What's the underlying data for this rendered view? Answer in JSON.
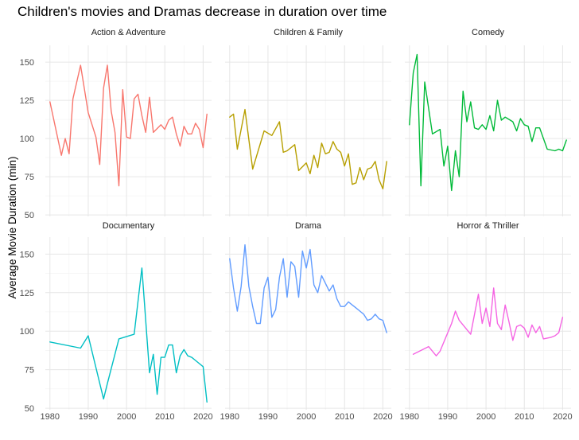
{
  "chart_data": {
    "type": "line",
    "title": "Children's movies and Dramas decrease in duration over time",
    "xlabel": "",
    "ylabel": "Average Movie Duration (min)",
    "xlim": [
      1978.8,
      2022.2
    ],
    "ylim": [
      49,
      161
    ],
    "xticks": [
      1980,
      1990,
      2000,
      2010,
      2020
    ],
    "yticks": [
      50,
      75,
      100,
      125,
      150
    ],
    "grid": true,
    "legend": "none",
    "facets": [
      {
        "name": "Action & Adventure",
        "color": "#F8766D",
        "points": [
          [
            1980,
            124
          ],
          [
            1983,
            89
          ],
          [
            1984,
            100
          ],
          [
            1985,
            90
          ],
          [
            1986,
            126
          ],
          [
            1988,
            148
          ],
          [
            1990,
            117
          ],
          [
            1992,
            101
          ],
          [
            1993,
            83
          ],
          [
            1994,
            133
          ],
          [
            1995,
            148
          ],
          [
            1996,
            118
          ],
          [
            1997,
            104
          ],
          [
            1998,
            69
          ],
          [
            1999,
            132
          ],
          [
            2000,
            101
          ],
          [
            2001,
            100
          ],
          [
            2002,
            126
          ],
          [
            2003,
            129
          ],
          [
            2004,
            115
          ],
          [
            2005,
            104
          ],
          [
            2006,
            127
          ],
          [
            2007,
            104
          ],
          [
            2009,
            109
          ],
          [
            2010,
            106
          ],
          [
            2011,
            112
          ],
          [
            2012,
            114
          ],
          [
            2013,
            103
          ],
          [
            2014,
            95
          ],
          [
            2015,
            108
          ],
          [
            2016,
            103
          ],
          [
            2017,
            103
          ],
          [
            2018,
            110
          ],
          [
            2019,
            106
          ],
          [
            2020,
            94
          ],
          [
            2021,
            116
          ]
        ]
      },
      {
        "name": "Children & Family",
        "color": "#B79F00",
        "points": [
          [
            1980,
            114
          ],
          [
            1981,
            116
          ],
          [
            1982,
            93
          ],
          [
            1984,
            119
          ],
          [
            1986,
            80
          ],
          [
            1989,
            105
          ],
          [
            1991,
            102
          ],
          [
            1993,
            111
          ],
          [
            1994,
            91
          ],
          [
            1995,
            92
          ],
          [
            1997,
            96
          ],
          [
            1998,
            79
          ],
          [
            2000,
            84
          ],
          [
            2001,
            77
          ],
          [
            2002,
            89
          ],
          [
            2003,
            81
          ],
          [
            2004,
            97
          ],
          [
            2005,
            90
          ],
          [
            2006,
            91
          ],
          [
            2007,
            98
          ],
          [
            2008,
            93
          ],
          [
            2009,
            91
          ],
          [
            2010,
            82
          ],
          [
            2011,
            90
          ],
          [
            2012,
            70
          ],
          [
            2013,
            71
          ],
          [
            2014,
            81
          ],
          [
            2015,
            73
          ],
          [
            2016,
            80
          ],
          [
            2017,
            81
          ],
          [
            2018,
            85
          ],
          [
            2019,
            73
          ],
          [
            2020,
            67
          ],
          [
            2021,
            85
          ]
        ]
      },
      {
        "name": "Comedy",
        "color": "#00BA38",
        "points": [
          [
            1980,
            109
          ],
          [
            1981,
            143
          ],
          [
            1982,
            155
          ],
          [
            1983,
            69
          ],
          [
            1984,
            137
          ],
          [
            1986,
            103
          ],
          [
            1988,
            106
          ],
          [
            1989,
            82
          ],
          [
            1990,
            95
          ],
          [
            1991,
            66
          ],
          [
            1992,
            92
          ],
          [
            1993,
            75
          ],
          [
            1994,
            131
          ],
          [
            1995,
            111
          ],
          [
            1996,
            124
          ],
          [
            1997,
            107
          ],
          [
            1998,
            106
          ],
          [
            1999,
            109
          ],
          [
            2000,
            106
          ],
          [
            2001,
            115
          ],
          [
            2002,
            105
          ],
          [
            2003,
            125
          ],
          [
            2004,
            112
          ],
          [
            2005,
            114
          ],
          [
            2007,
            111
          ],
          [
            2008,
            105
          ],
          [
            2009,
            113
          ],
          [
            2010,
            109
          ],
          [
            2011,
            108
          ],
          [
            2012,
            98
          ],
          [
            2013,
            107
          ],
          [
            2014,
            107
          ],
          [
            2016,
            93
          ],
          [
            2018,
            92
          ],
          [
            2019,
            93
          ],
          [
            2020,
            92
          ],
          [
            2021,
            99
          ]
        ]
      },
      {
        "name": "Documentary",
        "color": "#00BFC4",
        "points": [
          [
            1980,
            93
          ],
          [
            1988,
            89
          ],
          [
            1990,
            97
          ],
          [
            1994,
            56
          ],
          [
            1995,
            66
          ],
          [
            1998,
            95
          ],
          [
            2002,
            98
          ],
          [
            2004,
            141
          ],
          [
            2006,
            73
          ],
          [
            2007,
            85
          ],
          [
            2008,
            59
          ],
          [
            2009,
            83
          ],
          [
            2010,
            83
          ],
          [
            2011,
            91
          ],
          [
            2012,
            91
          ],
          [
            2013,
            73
          ],
          [
            2014,
            84
          ],
          [
            2015,
            88
          ],
          [
            2016,
            84
          ],
          [
            2017,
            83
          ],
          [
            2018,
            81
          ],
          [
            2020,
            77
          ],
          [
            2021,
            54
          ]
        ]
      },
      {
        "name": "Drama",
        "color": "#619CFF",
        "points": [
          [
            1980,
            147
          ],
          [
            1981,
            128
          ],
          [
            1982,
            113
          ],
          [
            1983,
            129
          ],
          [
            1984,
            156
          ],
          [
            1985,
            129
          ],
          [
            1986,
            116
          ],
          [
            1987,
            105
          ],
          [
            1988,
            105
          ],
          [
            1989,
            128
          ],
          [
            1990,
            135
          ],
          [
            1991,
            109
          ],
          [
            1992,
            114
          ],
          [
            1993,
            135
          ],
          [
            1994,
            147
          ],
          [
            1995,
            122
          ],
          [
            1996,
            145
          ],
          [
            1997,
            142
          ],
          [
            1998,
            122
          ],
          [
            1999,
            152
          ],
          [
            2000,
            141
          ],
          [
            2001,
            153
          ],
          [
            2002,
            130
          ],
          [
            2003,
            125
          ],
          [
            2004,
            136
          ],
          [
            2005,
            131
          ],
          [
            2006,
            126
          ],
          [
            2007,
            130
          ],
          [
            2008,
            121
          ],
          [
            2009,
            116
          ],
          [
            2010,
            116
          ],
          [
            2011,
            119
          ],
          [
            2012,
            117
          ],
          [
            2013,
            115
          ],
          [
            2014,
            113
          ],
          [
            2015,
            111
          ],
          [
            2016,
            107
          ],
          [
            2017,
            108
          ],
          [
            2018,
            111
          ],
          [
            2019,
            108
          ],
          [
            2020,
            107
          ],
          [
            2021,
            99
          ]
        ]
      },
      {
        "name": "Horror & Thriller",
        "color": "#F564E3",
        "points": [
          [
            1981,
            85
          ],
          [
            1985,
            90
          ],
          [
            1987,
            84
          ],
          [
            1988,
            87
          ],
          [
            1991,
            105
          ],
          [
            1992,
            113
          ],
          [
            1993,
            107
          ],
          [
            1996,
            98
          ],
          [
            1998,
            124
          ],
          [
            1999,
            105
          ],
          [
            2000,
            115
          ],
          [
            2001,
            103
          ],
          [
            2002,
            128
          ],
          [
            2003,
            105
          ],
          [
            2004,
            101
          ],
          [
            2005,
            117
          ],
          [
            2006,
            106
          ],
          [
            2007,
            94
          ],
          [
            2008,
            103
          ],
          [
            2009,
            104
          ],
          [
            2010,
            102
          ],
          [
            2011,
            96
          ],
          [
            2012,
            104
          ],
          [
            2013,
            99
          ],
          [
            2014,
            103
          ],
          [
            2015,
            95
          ],
          [
            2017,
            96
          ],
          [
            2018,
            97
          ],
          [
            2019,
            99
          ],
          [
            2020,
            109
          ]
        ]
      }
    ]
  }
}
